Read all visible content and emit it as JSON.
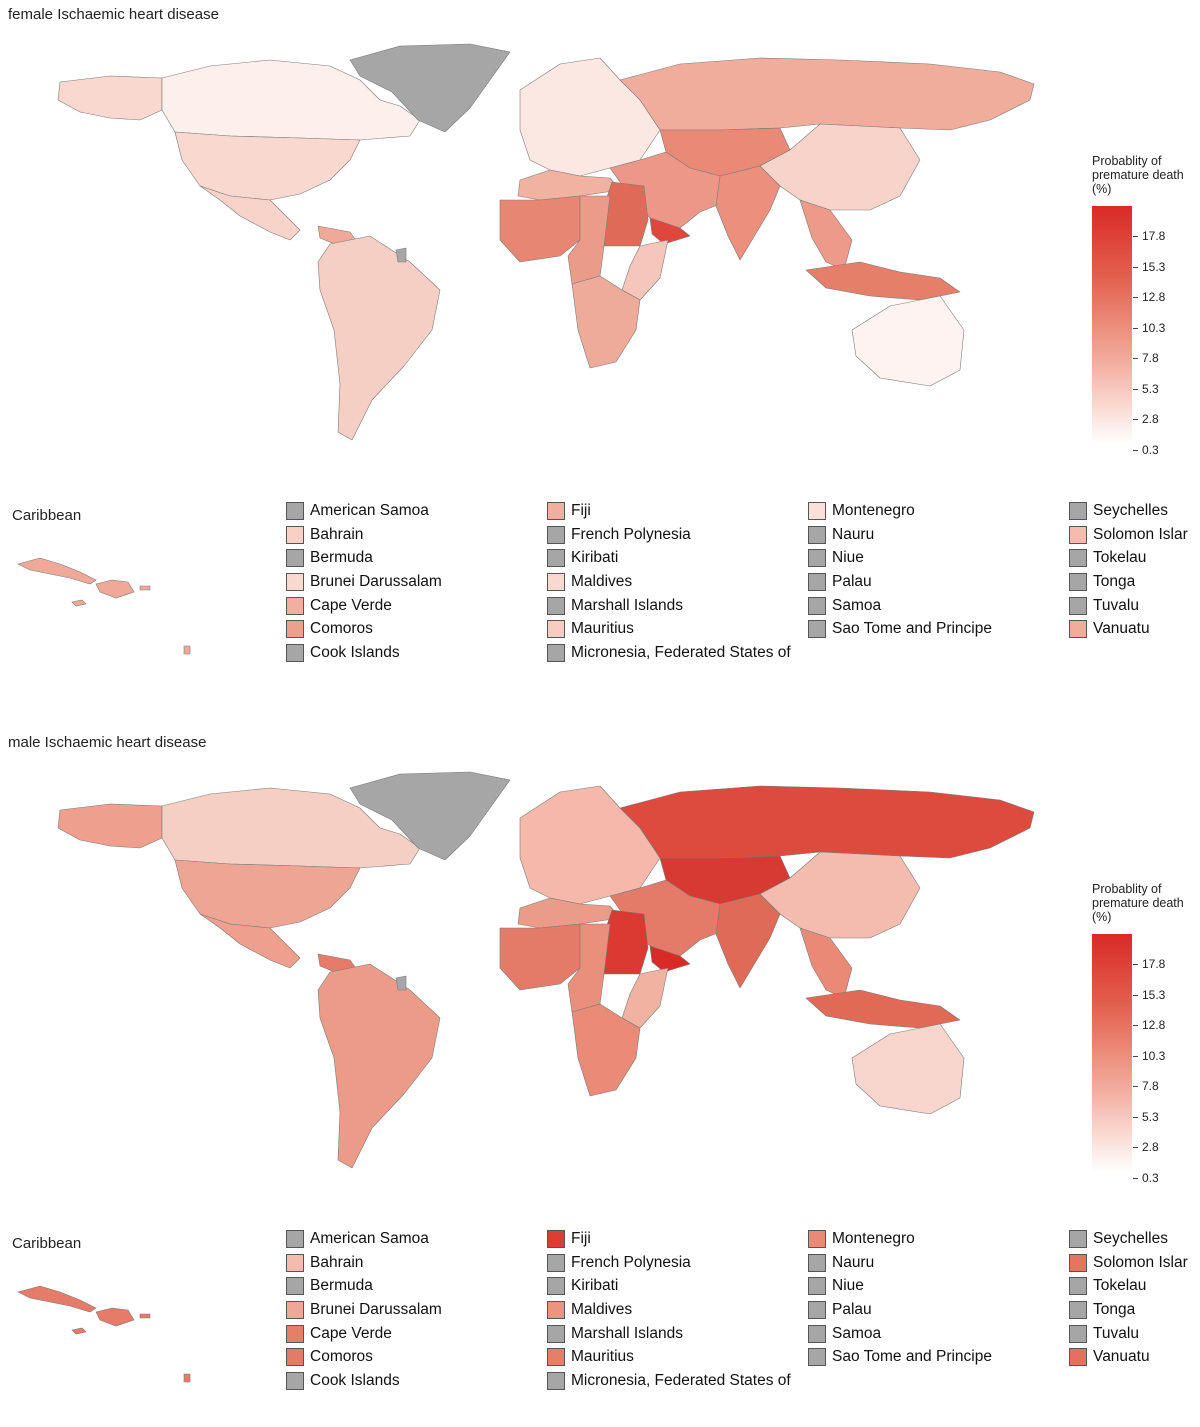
{
  "colorbar": {
    "title_lines": [
      "Probablity of",
      "premature death",
      "(%)"
    ],
    "ticks": [
      "17.8",
      "15.3",
      "12.8",
      "10.3",
      "7.8",
      "5.3",
      "2.8",
      "0.3"
    ],
    "colors": {
      "low": "#ffffff",
      "mid": "#ec8c7a",
      "high": "#d92a27",
      "missing": "#a6a6a6"
    }
  },
  "panels": [
    {
      "title": "female Ischaemic heart disease",
      "inset_title": "Caribbean",
      "region_colors": {
        "north_america": "#fdf0ec",
        "canada": "#fdf0ec",
        "alaska": "#f9d8cf",
        "usa": "#f9d8cf",
        "mexico": "#f8d3c9",
        "south_america": "#f6cfc4",
        "greenland": "#a6a6a6",
        "europe": "#fce8e3",
        "russia": "#f0ad9c",
        "central_asia": "#e98a76",
        "middle_east": "#ec9787",
        "yemen": "#e0473c",
        "north_africa": "#f1b2a2",
        "sahel": "#eb9c89",
        "west_africa": "#e78672",
        "east_africa": "#f6c6ba",
        "southern_africa": "#efab9a",
        "egypt_sudan": "#e06a58",
        "india": "#ec8f7c",
        "china": "#f7d3c9",
        "southeast_asia": "#ee9a88",
        "indonesia": "#e57f6a",
        "australia": "#fef3f0",
        "caribbean": "#f0a998"
      },
      "legend": [
        [
          {
            "label": "American Samoa",
            "color": "#a6a6a6"
          },
          {
            "label": "Bahrain",
            "color": "#f8d0c6"
          },
          {
            "label": "Bermuda",
            "color": "#a6a6a6"
          },
          {
            "label": "Brunei Darussalam",
            "color": "#f9d8cf"
          },
          {
            "label": "Cape Verde",
            "color": "#f2ae9e"
          },
          {
            "label": "Comoros",
            "color": "#eda08e"
          },
          {
            "label": "Cook Islands",
            "color": "#a6a6a6"
          }
        ],
        [
          {
            "label": "Fiji",
            "color": "#f2ae9e"
          },
          {
            "label": "French Polynesia",
            "color": "#a6a6a6"
          },
          {
            "label": "Kiribati",
            "color": "#a6a6a6"
          },
          {
            "label": "Maldives",
            "color": "#f9d8cf"
          },
          {
            "label": "Marshall Islands",
            "color": "#a6a6a6"
          },
          {
            "label": "Mauritius",
            "color": "#f7cdc2"
          },
          {
            "label": "Micronesia, Federated States of",
            "color": "#a6a6a6"
          }
        ],
        [
          {
            "label": "Montenegro",
            "color": "#fbe0d9"
          },
          {
            "label": "Nauru",
            "color": "#a6a6a6"
          },
          {
            "label": "Niue",
            "color": "#a6a6a6"
          },
          {
            "label": "Palau",
            "color": "#a6a6a6"
          },
          {
            "label": "Samoa",
            "color": "#a6a6a6"
          },
          {
            "label": "Sao Tome and Principe",
            "color": "#a6a6a6"
          }
        ],
        [
          {
            "label": "Seychelles",
            "color": "#a6a6a6"
          },
          {
            "label": "Solomon Islar",
            "color": "#f4bcae"
          },
          {
            "label": "Tokelau",
            "color": "#a6a6a6"
          },
          {
            "label": "Tonga",
            "color": "#a6a6a6"
          },
          {
            "label": "Tuvalu",
            "color": "#a6a6a6"
          },
          {
            "label": "Vanuatu",
            "color": "#f1ad9c"
          }
        ]
      ]
    },
    {
      "title": "male Ischaemic heart disease",
      "inset_title": "Caribbean",
      "region_colors": {
        "north_america": "#f6cfc4",
        "canada": "#f6cfc4",
        "alaska": "#ee9f8d",
        "usa": "#eea594",
        "mexico": "#ee9f8d",
        "south_america": "#eb9b88",
        "greenland": "#a6a6a6",
        "europe": "#f4b9ab",
        "russia": "#dd4a3e",
        "central_asia": "#d73a32",
        "middle_east": "#e47b68",
        "yemen": "#d92a27",
        "north_africa": "#eb9c89",
        "sahel": "#e98f7c",
        "west_africa": "#e47b68",
        "east_africa": "#f1b2a2",
        "southern_africa": "#e98b77",
        "egypt_sudan": "#da3a31",
        "india": "#e06a58",
        "china": "#f4bcae",
        "southeast_asia": "#e98a76",
        "indonesia": "#e16a57",
        "australia": "#f8d6cd",
        "caribbean": "#e57b68"
      },
      "legend": [
        [
          {
            "label": "American Samoa",
            "color": "#a6a6a6"
          },
          {
            "label": "Bahrain",
            "color": "#f4bcae"
          },
          {
            "label": "Bermuda",
            "color": "#a6a6a6"
          },
          {
            "label": "Brunei Darussalam",
            "color": "#efa897"
          },
          {
            "label": "Cape Verde",
            "color": "#e57f6a"
          },
          {
            "label": "Comoros",
            "color": "#e47b68"
          },
          {
            "label": "Cook Islands",
            "color": "#a6a6a6"
          }
        ],
        [
          {
            "label": "Fiji",
            "color": "#dc3d35"
          },
          {
            "label": "French Polynesia",
            "color": "#a6a6a6"
          },
          {
            "label": "Kiribati",
            "color": "#a6a6a6"
          },
          {
            "label": "Maldives",
            "color": "#ea9481"
          },
          {
            "label": "Marshall Islands",
            "color": "#a6a6a6"
          },
          {
            "label": "Mauritius",
            "color": "#e57f6a"
          },
          {
            "label": "Micronesia, Federated States of",
            "color": "#a6a6a6"
          }
        ],
        [
          {
            "label": "Montenegro",
            "color": "#e98a76"
          },
          {
            "label": "Nauru",
            "color": "#a6a6a6"
          },
          {
            "label": "Niue",
            "color": "#a6a6a6"
          },
          {
            "label": "Palau",
            "color": "#a6a6a6"
          },
          {
            "label": "Samoa",
            "color": "#a6a6a6"
          },
          {
            "label": "Sao Tome and Principe",
            "color": "#a6a6a6"
          }
        ],
        [
          {
            "label": "Seychelles",
            "color": "#a6a6a6"
          },
          {
            "label": "Solomon Islar",
            "color": "#e57460"
          },
          {
            "label": "Tokelau",
            "color": "#a6a6a6"
          },
          {
            "label": "Tonga",
            "color": "#a6a6a6"
          },
          {
            "label": "Tuvalu",
            "color": "#a6a6a6"
          },
          {
            "label": "Vanuatu",
            "color": "#e37060"
          }
        ]
      ]
    }
  ]
}
